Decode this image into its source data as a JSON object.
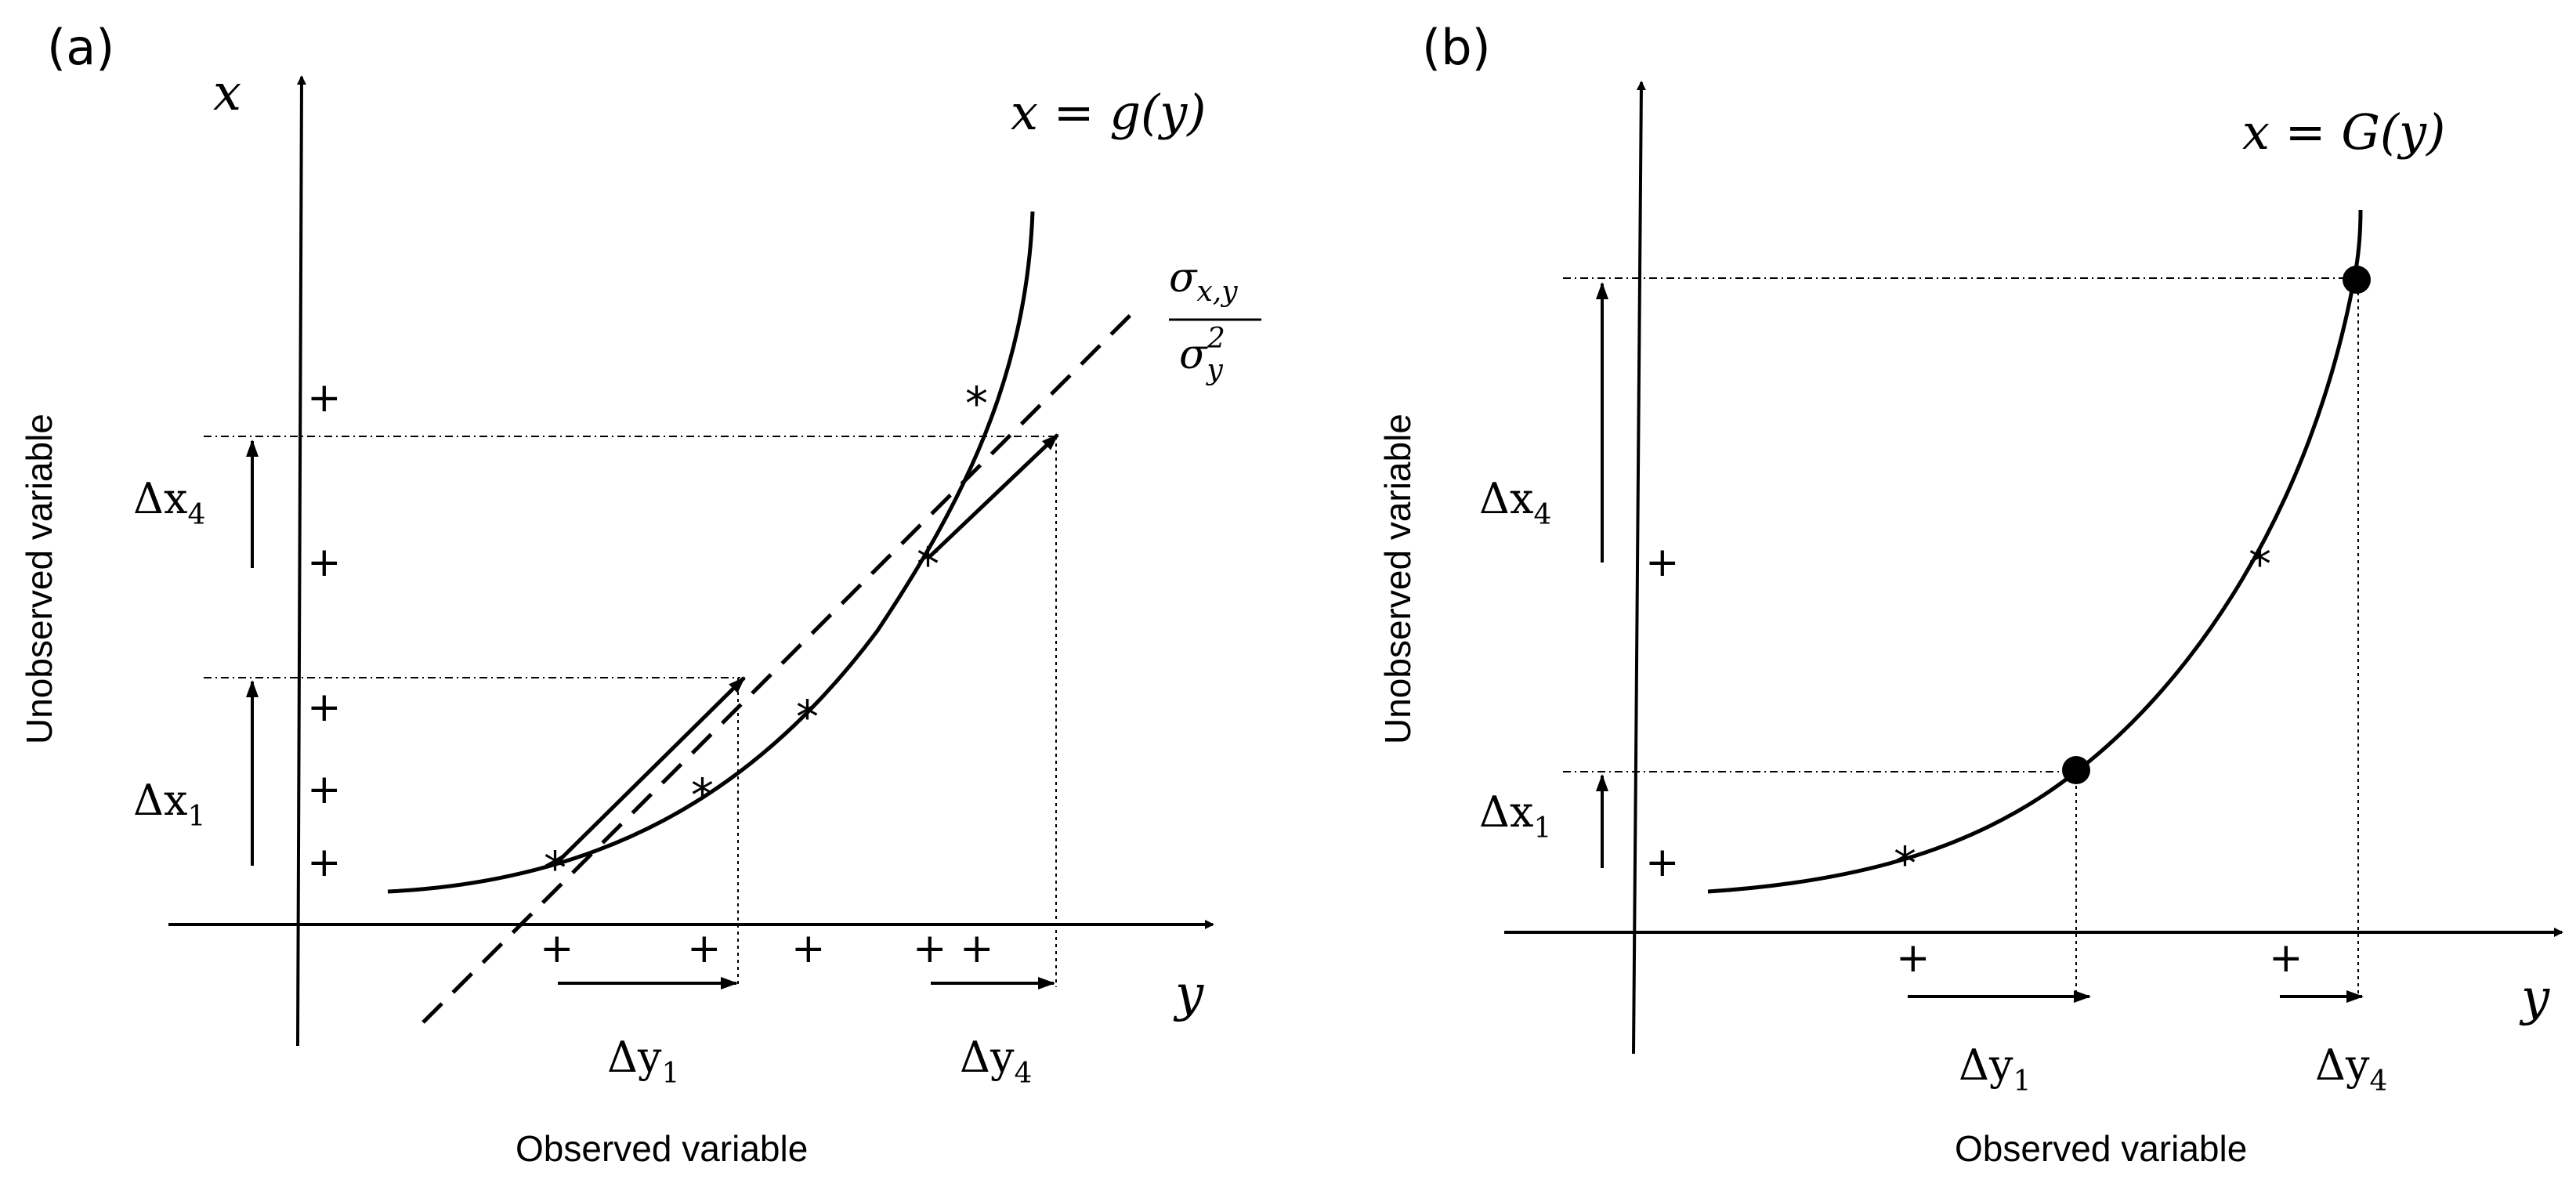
{
  "panel_a": {
    "label": "(a)",
    "y_axis_var": "x",
    "x_axis_var": "y",
    "curve_label": "x = g(y)",
    "slope_label_num": "σ",
    "slope_label_num_sub": "x,y",
    "slope_label_den": "σ",
    "slope_label_den_sub": "y",
    "slope_label_den_sup": "2",
    "dx1": "Δx",
    "dx1_sub": "1",
    "dx4": "Δx",
    "dx4_sub": "4",
    "dy1": "Δy",
    "dy1_sub": "1",
    "dy4": "Δy",
    "dy4_sub": "4",
    "ylabel": "Unobserved variable",
    "xlabel": "Observed variable",
    "plus_marker": "+",
    "star_marker": "*"
  },
  "panel_b": {
    "label": "(b)",
    "x_axis_var": "y",
    "curve_label": "x = G(y)",
    "dx1": "Δx",
    "dx1_sub": "1",
    "dx4": "Δx",
    "dx4_sub": "4",
    "dy1": "Δy",
    "dy1_sub": "1",
    "dy4": "Δy",
    "dy4_sub": "4",
    "ylabel": "Unobserved variable",
    "xlabel": "Observed variable",
    "plus_marker": "+",
    "star_marker": "*"
  },
  "colors": {
    "ink": "#000000",
    "background": "#ffffff"
  }
}
